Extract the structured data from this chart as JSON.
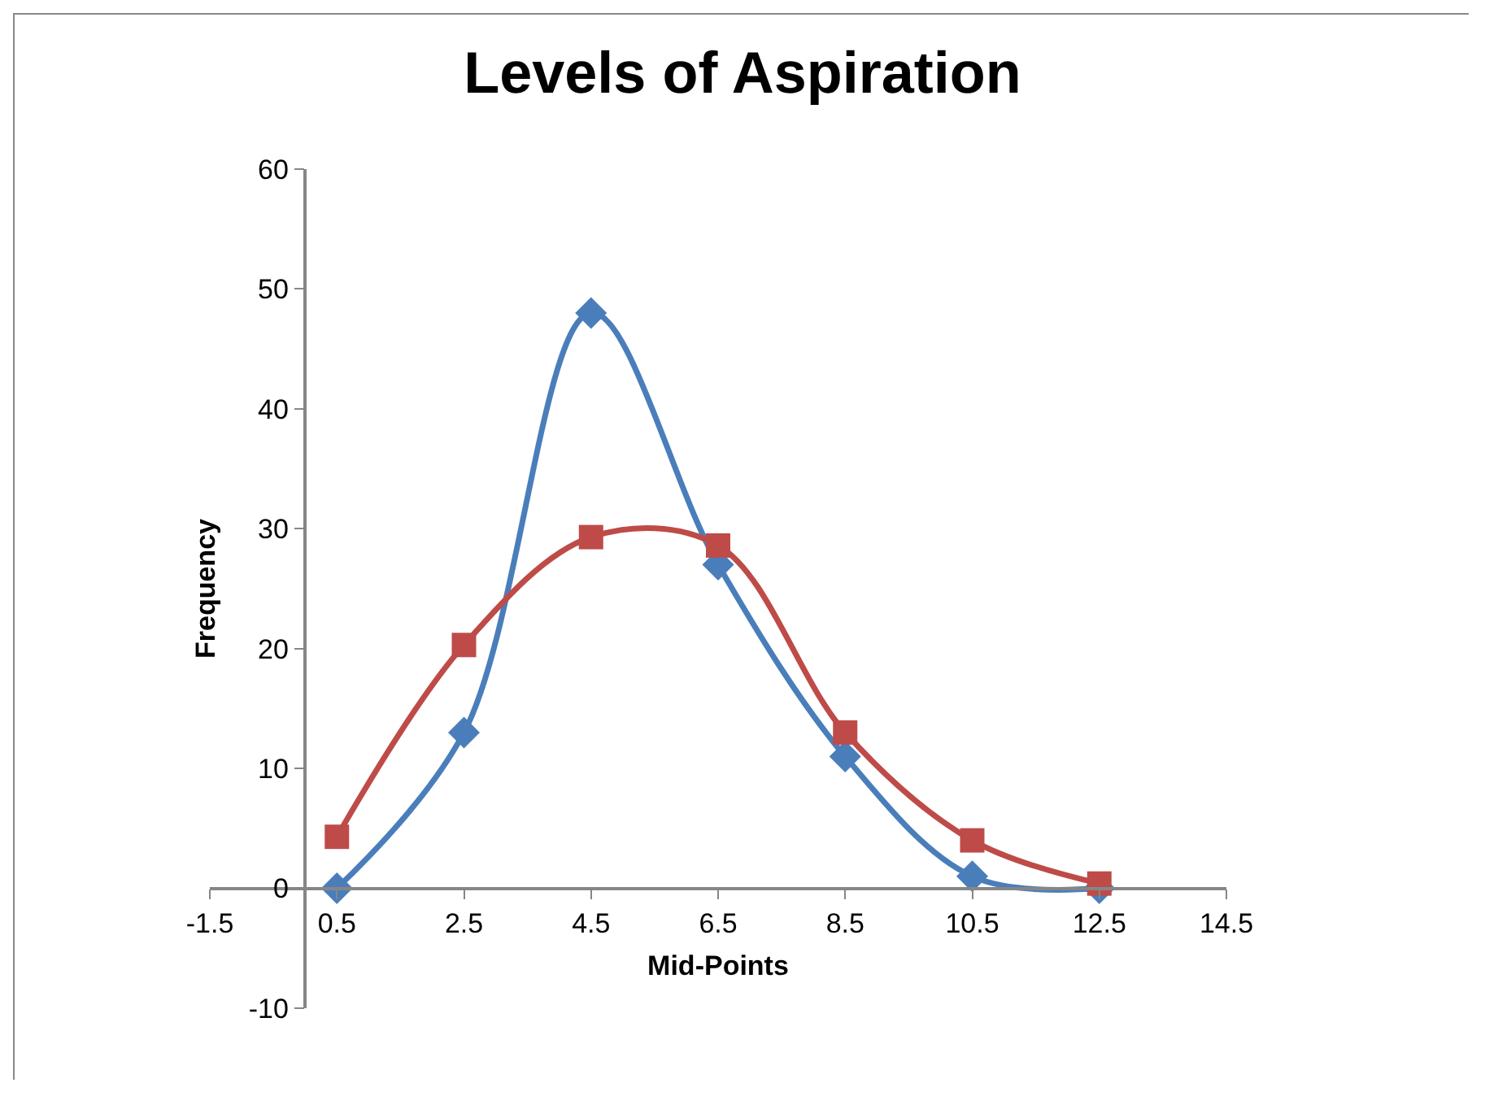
{
  "chart_data": {
    "type": "line",
    "title": "Levels of Aspiration",
    "xlabel": "Mid-Points",
    "ylabel": "Frequency",
    "x": [
      0.5,
      2.5,
      4.5,
      6.5,
      8.5,
      10.5,
      12.5
    ],
    "series": [
      {
        "color": "#4a7ebb",
        "marker": "diamond",
        "values": [
          0,
          13,
          48,
          27,
          11,
          1,
          0
        ]
      },
      {
        "color": "#be4b48",
        "marker": "square",
        "values": [
          4.3,
          20.3,
          29.3,
          28.6,
          13,
          4,
          0.4
        ]
      }
    ],
    "xlim": [
      -1.5,
      14.5
    ],
    "ylim": [
      -10,
      60
    ],
    "xticks": [
      -1.5,
      0.5,
      2.5,
      4.5,
      6.5,
      8.5,
      10.5,
      12.5,
      14.5
    ],
    "yticks": [
      -10,
      0,
      10,
      20,
      30,
      40,
      50,
      60
    ],
    "grid": false
  }
}
